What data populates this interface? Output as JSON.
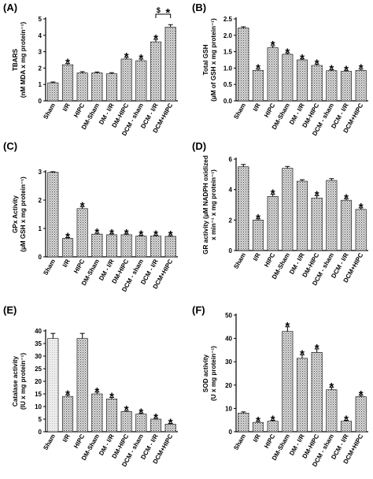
{
  "chart_data": [
    {
      "panel": "(A)",
      "type": "bar",
      "ylabel": [
        "TBARS",
        "(nM MDA x mg protein⁻¹)"
      ],
      "ylim": [
        0,
        5
      ],
      "yticks": [
        0,
        1,
        2,
        3,
        4,
        5
      ],
      "categories": [
        "Sham",
        "I/R",
        "HIPC",
        "DM-Sham",
        "DM - I/R",
        "DM-HIPC",
        "DCM - sham",
        "DCM - I/R",
        "DCM+HIPC"
      ],
      "values": [
        1.1,
        2.2,
        1.7,
        1.7,
        1.65,
        2.55,
        2.45,
        3.6,
        4.5
      ],
      "errors": [
        0.05,
        0.08,
        0.08,
        0.06,
        0.07,
        0.1,
        0.1,
        0.15,
        0.15
      ],
      "stars": [
        false,
        true,
        false,
        false,
        false,
        true,
        true,
        true,
        false
      ],
      "annotations": [
        {
          "from": 7,
          "to": 8,
          "text": "$",
          "star": "*"
        }
      ]
    },
    {
      "panel": "(B)",
      "type": "bar",
      "ylabel": [
        "Total GSH",
        "(µM of GSH x mg protein⁻¹)"
      ],
      "ylim": [
        0,
        2.5
      ],
      "yticks": [
        0.0,
        0.5,
        1.0,
        1.5,
        2.0,
        2.5
      ],
      "categories": [
        "Sham",
        "I/R",
        "HIPC",
        "DM-Sham",
        "DM - I/R",
        "DM-HIPC",
        "DCM - sham",
        "DCM - I/R",
        "DCM+HIPC"
      ],
      "values": [
        2.22,
        0.93,
        1.62,
        1.42,
        1.25,
        1.08,
        0.92,
        0.9,
        0.93
      ],
      "errors": [
        0.04,
        0.04,
        0.06,
        0.04,
        0.03,
        0.04,
        0.03,
        0.03,
        0.04
      ],
      "stars": [
        false,
        true,
        true,
        true,
        true,
        true,
        true,
        true,
        true
      ]
    },
    {
      "panel": "(C)",
      "type": "bar",
      "ylabel": [
        "GPx Activity",
        "(µM GSH x mg protein⁻¹)"
      ],
      "ylim": [
        0,
        3
      ],
      "yticks": [
        0,
        1,
        2,
        3
      ],
      "categories": [
        "Sham",
        "I/R",
        "HIPC",
        "DM-Sham",
        "DM - I/R",
        "DM-HIPC",
        "DCM - sham",
        "DCM - I/R",
        "DCM+HIPC"
      ],
      "values": [
        2.98,
        0.65,
        1.7,
        0.8,
        0.78,
        0.78,
        0.73,
        0.73,
        0.72
      ],
      "errors": [
        0.02,
        0.03,
        0.07,
        0.03,
        0.03,
        0.03,
        0.03,
        0.03,
        0.03
      ],
      "stars": [
        false,
        true,
        true,
        true,
        true,
        true,
        true,
        true,
        true
      ]
    },
    {
      "panel": "(D)",
      "type": "bar",
      "ylabel": [
        "GR activity (µM NADPH oxidized",
        "x min⁻¹ x mg protein⁻¹)"
      ],
      "ylim": [
        0,
        6
      ],
      "yticks": [
        0,
        2,
        4,
        6
      ],
      "categories": [
        "Sham",
        "I/R",
        "HIPC",
        "DM-Sham",
        "DM - I/R",
        "DM-HIPC",
        "DCM - sham",
        "DCM - I/R",
        "DCM+HIPC"
      ],
      "values": [
        5.5,
        2.0,
        3.55,
        5.4,
        4.55,
        3.45,
        4.6,
        3.3,
        2.7
      ],
      "errors": [
        0.15,
        0.08,
        0.15,
        0.12,
        0.1,
        0.15,
        0.12,
        0.1,
        0.1
      ],
      "stars": [
        false,
        true,
        true,
        false,
        false,
        true,
        false,
        true,
        true
      ]
    },
    {
      "panel": "(E)",
      "type": "bar",
      "ylabel": [
        "Catalase activity",
        "(IU x mg protein⁻¹)"
      ],
      "ylim": [
        0,
        40
      ],
      "yticks": [
        0,
        5,
        10,
        15,
        20,
        25,
        30,
        35,
        40
      ],
      "categories": [
        "Sham",
        "I/R",
        "HIPC",
        "DM-Sham",
        "DM - I/R",
        "DM-HIPC",
        "DCM - sham",
        "DCM - I/R",
        "DCM+HIPC"
      ],
      "values": [
        37,
        14,
        37,
        15,
        13,
        8,
        7,
        5,
        3
      ],
      "errors": [
        2.0,
        0.6,
        2.0,
        0.7,
        0.6,
        0.4,
        0.4,
        0.3,
        0.3
      ],
      "stars": [
        false,
        true,
        false,
        true,
        true,
        true,
        true,
        true,
        true
      ],
      "first_bar_plain": true
    },
    {
      "panel": "(F)",
      "type": "bar",
      "ylabel": [
        "SOD activity",
        "(U x mg protein⁻¹)"
      ],
      "ylim": [
        0,
        50
      ],
      "yticks": [
        0,
        10,
        20,
        30,
        40,
        50
      ],
      "categories": [
        "Sham",
        "I/R",
        "HIPC",
        "DM-Sham",
        "DM - I/R",
        "DM-HIPC",
        "DCM - sham",
        "DCM - I/R",
        "DCM+HIPC"
      ],
      "values": [
        8,
        4,
        4.5,
        43,
        31.5,
        34,
        18,
        4.5,
        15
      ],
      "errors": [
        0.5,
        0.4,
        0.4,
        2.0,
        1.5,
        1.5,
        1.0,
        0.4,
        0.6
      ],
      "stars": [
        false,
        true,
        true,
        true,
        true,
        true,
        true,
        true,
        true
      ]
    }
  ]
}
